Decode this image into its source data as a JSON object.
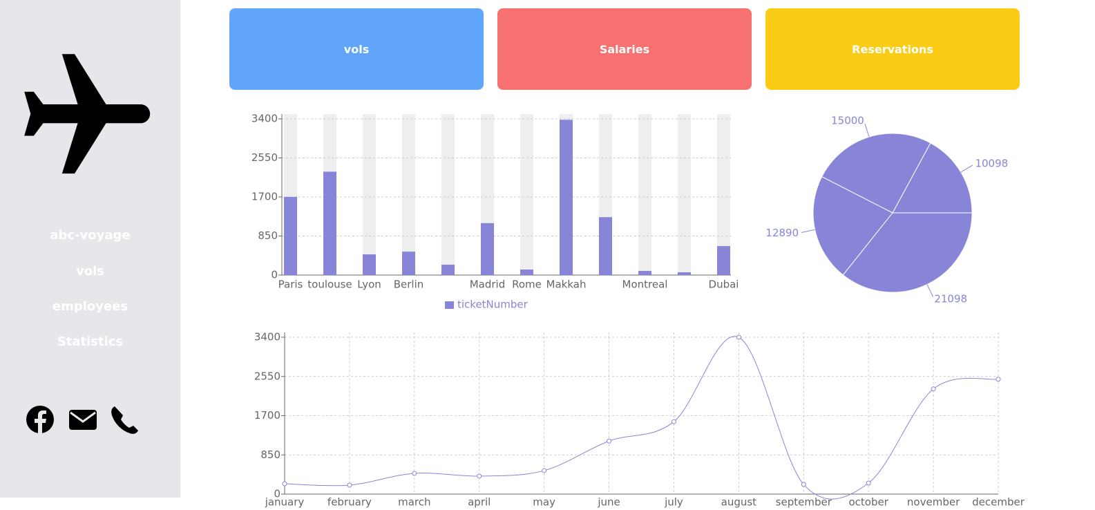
{
  "sidebar": {
    "nav": [
      "abc-voyage",
      "vols",
      "employees",
      "Statistics"
    ]
  },
  "cards": [
    {
      "label": "vols",
      "color": "#60a5fa"
    },
    {
      "label": "Salaries",
      "color": "#f87171"
    },
    {
      "label": "Reservations",
      "color": "#facc15"
    }
  ],
  "chart_data": [
    {
      "type": "bar",
      "categories": [
        "Paris",
        "toulouse",
        "Lyon",
        "Berlin",
        null,
        "Madrid",
        "Rome",
        "Makkah",
        null,
        "Montreal",
        null,
        "Dubai"
      ],
      "series": [
        {
          "name": "ticketNumber",
          "color": "#8884d8",
          "values": [
            1700,
            2250,
            450,
            510,
            225,
            1130,
            120,
            3380,
            1260,
            90,
            60,
            630
          ]
        }
      ],
      "ylim": [
        0,
        3400
      ],
      "yticks": [
        0,
        850,
        1700,
        2550,
        3400
      ],
      "grid": true
    },
    {
      "type": "pie",
      "values": [
        10098,
        15000,
        12890,
        21098
      ],
      "color": "#8884d8"
    },
    {
      "type": "line",
      "categories": [
        "january",
        "february",
        "march",
        "april",
        "may",
        "june",
        "july",
        "august",
        "september",
        "october",
        "november",
        "december"
      ],
      "values": [
        225,
        195,
        450,
        390,
        510,
        1150,
        1570,
        3400,
        210,
        240,
        2280,
        2490
      ],
      "color": "#8884d8",
      "ylim": [
        0,
        3400
      ],
      "yticks": [
        0,
        850,
        1700,
        2550,
        3400
      ],
      "grid": true
    }
  ]
}
